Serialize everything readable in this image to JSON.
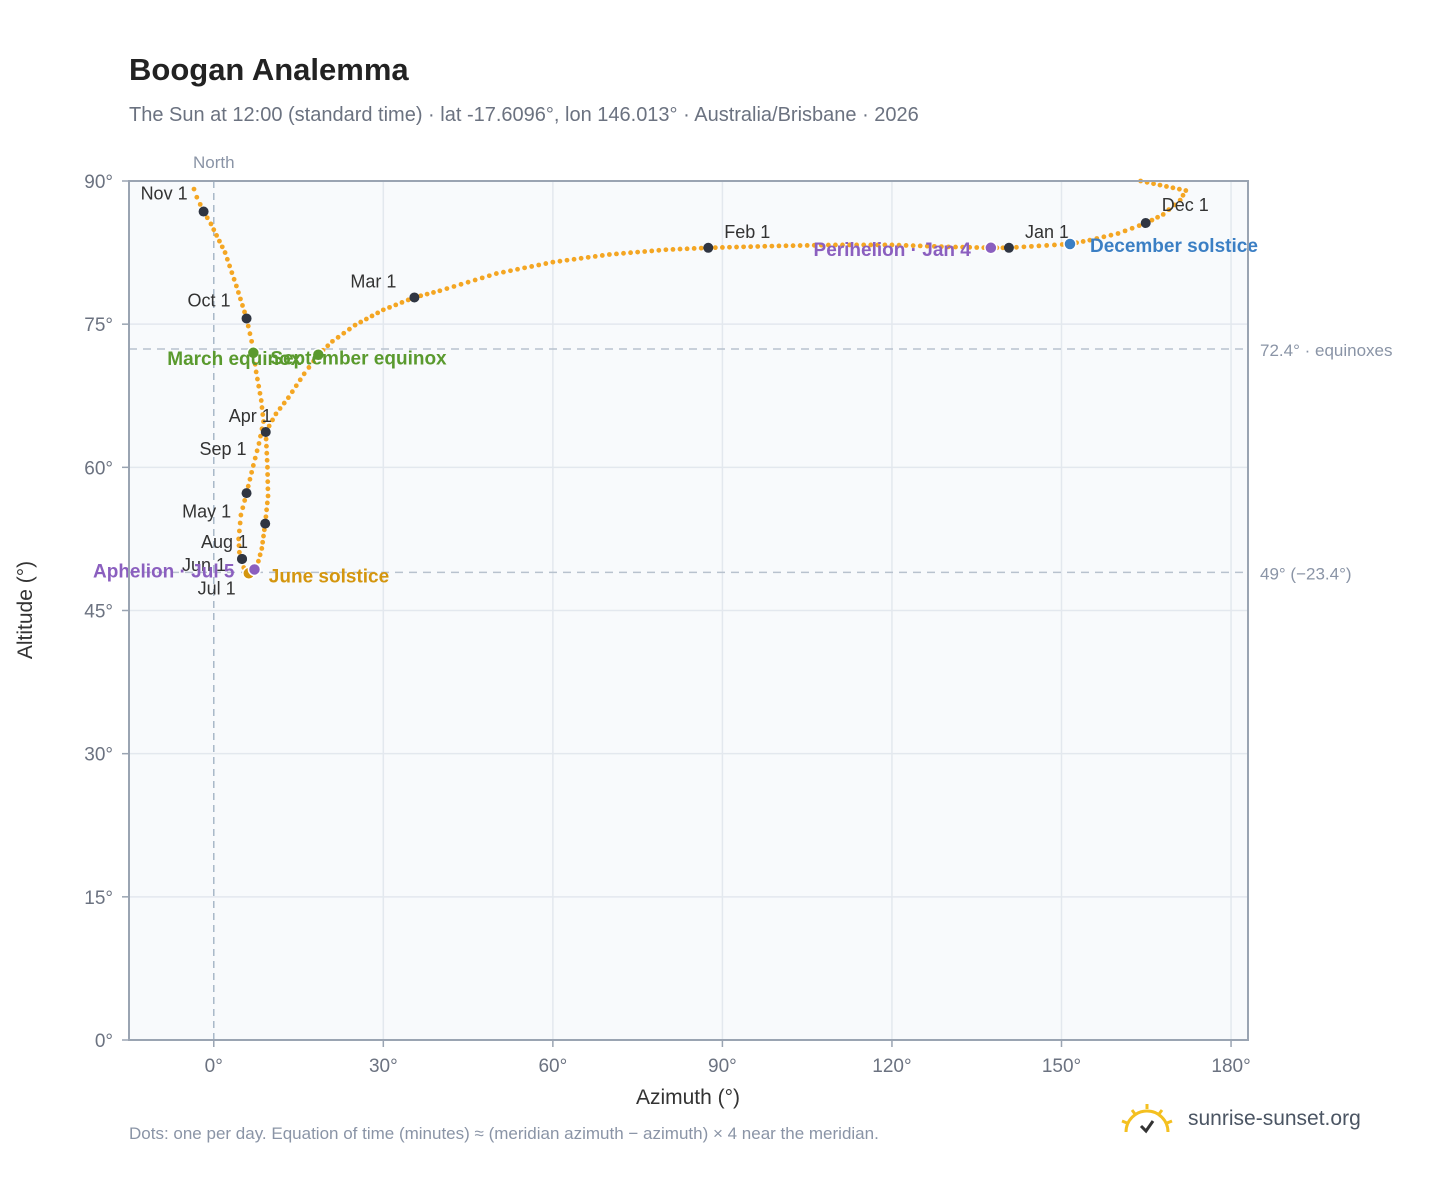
{
  "chart_data": {
    "type": "scatter",
    "title": "Boogan Analemma",
    "subtitle": "The Sun at 12:00 (standard time) · lat -17.6096°, lon 146.013° · Australia/Brisbane · 2026",
    "xlabel": "Azimuth (°)",
    "ylabel": "Altitude (°)",
    "xlim": [
      -15,
      183
    ],
    "ylim": [
      0,
      90
    ],
    "x_ticks": [
      0,
      30,
      60,
      90,
      120,
      150,
      180
    ],
    "x_tick_labels": [
      "0°",
      "30°",
      "60°",
      "90°",
      "120°",
      "150°",
      "180°"
    ],
    "y_ticks": [
      0,
      15,
      30,
      45,
      60,
      75,
      90
    ],
    "y_tick_labels": [
      "0°",
      "15°",
      "30°",
      "45°",
      "60°",
      "75°",
      "90°"
    ],
    "grid": true,
    "north_line": {
      "x": 0,
      "label": "North"
    },
    "reference_lines": [
      {
        "y": 72.4,
        "label": "72.4° · equinoxes"
      },
      {
        "y": 49.0,
        "label": "49° (−23.4°)"
      }
    ],
    "analemma_path": [
      [
        164.0,
        90.0
      ],
      [
        172.0,
        89.0
      ],
      [
        171.0,
        88.0
      ],
      [
        168.0,
        86.5
      ],
      [
        165.0,
        85.6
      ],
      [
        160.0,
        84.5
      ],
      [
        155.0,
        83.8
      ],
      [
        151.5,
        83.4
      ],
      [
        146.0,
        83.2
      ],
      [
        140.7,
        83.0
      ],
      [
        137.5,
        83.0
      ],
      [
        130.0,
        83.1
      ],
      [
        120.0,
        83.3
      ],
      [
        110.0,
        83.3
      ],
      [
        100.0,
        83.2
      ],
      [
        87.5,
        83.0
      ],
      [
        80.0,
        82.8
      ],
      [
        70.0,
        82.3
      ],
      [
        60.0,
        81.5
      ],
      [
        50.0,
        80.3
      ],
      [
        40.0,
        78.5
      ],
      [
        35.5,
        77.8
      ],
      [
        30.0,
        76.5
      ],
      [
        25.0,
        74.9
      ],
      [
        21.0,
        73.2
      ],
      [
        18.5,
        71.8
      ],
      [
        16.0,
        69.8
      ],
      [
        13.2,
        67.3
      ],
      [
        11.0,
        65.6
      ],
      [
        9.2,
        63.7
      ],
      [
        9.5,
        60.0
      ],
      [
        9.6,
        57.0
      ],
      [
        9.1,
        54.1
      ],
      [
        8.5,
        51.5
      ],
      [
        7.6,
        49.5
      ],
      [
        7.0,
        49.1
      ],
      [
        6.0,
        48.9
      ],
      [
        5.3,
        49.5
      ],
      [
        4.6,
        50.4
      ],
      [
        4.4,
        52.5
      ],
      [
        4.8,
        55.0
      ],
      [
        5.8,
        57.3
      ],
      [
        7.0,
        60.2
      ],
      [
        8.0,
        62.5
      ],
      [
        8.8,
        64.8
      ],
      [
        8.4,
        67.0
      ],
      [
        7.5,
        70.0
      ],
      [
        7.0,
        72.4
      ],
      [
        5.8,
        75.6
      ],
      [
        4.0,
        79.0
      ],
      [
        2.0,
        82.5
      ],
      [
        -0.5,
        85.5
      ],
      [
        -1.8,
        86.8
      ],
      [
        -3.0,
        88.3
      ],
      [
        -4.0,
        90.0
      ]
    ],
    "series": [
      {
        "name": "month starts",
        "points": [
          {
            "label": "Jan 1",
            "x": 140.7,
            "y": 83.0
          },
          {
            "label": "Feb 1",
            "x": 87.5,
            "y": 83.0
          },
          {
            "label": "Mar 1",
            "x": 35.5,
            "y": 77.8
          },
          {
            "label": "Apr 1",
            "x": 9.2,
            "y": 63.7
          },
          {
            "label": "May 1",
            "x": 9.1,
            "y": 54.1
          },
          {
            "label": "Jun 1",
            "x": 5.0,
            "y": 50.4
          },
          {
            "label": "Jul 1",
            "x": 6.0,
            "y": 48.9
          },
          {
            "label": "Aug 1",
            "x": 5.0,
            "y": 50.4
          },
          {
            "label": "Sep 1",
            "x": 5.8,
            "y": 57.3
          },
          {
            "label": "Oct 1",
            "x": 5.8,
            "y": 75.6
          },
          {
            "label": "Nov 1",
            "x": -1.8,
            "y": 86.8
          },
          {
            "label": "Dec 1",
            "x": 164.9,
            "y": 85.6
          }
        ]
      }
    ],
    "events": [
      {
        "label": "December solstice",
        "x": 151.5,
        "y": 83.4,
        "color": "#3b7fc4"
      },
      {
        "label": "June solstice",
        "x": 6.2,
        "y": 48.9,
        "color": "#d4960f"
      },
      {
        "label": "March equinox",
        "x": 7.0,
        "y": 72.0,
        "color": "#5a9a2e"
      },
      {
        "label": "September equinox",
        "x": 18.5,
        "y": 71.8,
        "color": "#5a9a2e"
      },
      {
        "label": "Perihelion · Jan 4",
        "x": 137.5,
        "y": 83.0,
        "color": "#8b5fbf"
      },
      {
        "label": "Aphelion · Jul 5",
        "x": 7.2,
        "y": 49.3,
        "color": "#8b5fbf"
      }
    ],
    "colors": {
      "curve": "#f4a623",
      "month_dot": "#2f3542",
      "grid": "#e3e8ee",
      "plot_bg": "#f8fafc",
      "axis": "#9aa4b2"
    }
  },
  "footnote": "Dots: one per day. Equation of time (minutes) ≈ (meridian azimuth − azimuth) × 4 near the meridian.",
  "brand": {
    "name": "sunrise-sunset.org",
    "icon": "sun-logo-icon"
  }
}
